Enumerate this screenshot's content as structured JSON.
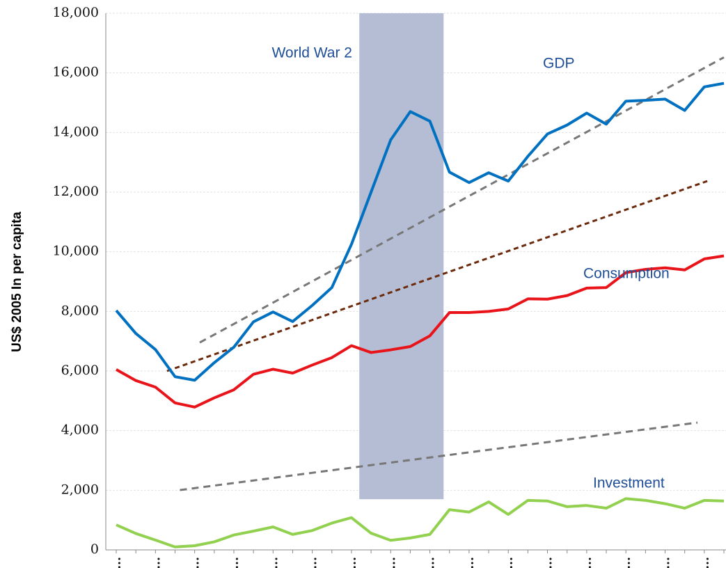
{
  "chart_data": {
    "type": "line",
    "y_label": "US$ 2005 In per capita",
    "categories": [
      "1...",
      null,
      "1...",
      null,
      "1...",
      null,
      "1...",
      null,
      "1...",
      null,
      "1...",
      null,
      "1...",
      null,
      "1...",
      null,
      "1...",
      null,
      "1...",
      null,
      "1...",
      null,
      "1...",
      null,
      "1...",
      null,
      "1...",
      null,
      "1...",
      null,
      "1...",
      null
    ],
    "series": [
      {
        "name": "GDP",
        "color": "#0070c0",
        "values": [
          8030,
          7260,
          6720,
          5810,
          5690,
          6280,
          6800,
          7650,
          7980,
          7660,
          8200,
          8800,
          10250,
          12000,
          13750,
          14700,
          14380,
          12670,
          12320,
          12650,
          12370,
          13200,
          13950,
          14250,
          14650,
          14280,
          15050,
          15080,
          15120,
          14740,
          15530,
          15650
        ]
      },
      {
        "name": "Consumption",
        "color": "#e8141a",
        "values": [
          6050,
          5680,
          5460,
          4930,
          4790,
          5100,
          5370,
          5890,
          6060,
          5930,
          6200,
          6450,
          6850,
          6620,
          6710,
          6820,
          7180,
          7960,
          7960,
          8000,
          8080,
          8420,
          8410,
          8530,
          8780,
          8800,
          9300,
          9410,
          9460,
          9390,
          9760,
          9860
        ]
      },
      {
        "name": "Investment",
        "color": "#92d050",
        "values": [
          840,
          550,
          330,
          100,
          140,
          270,
          500,
          630,
          770,
          520,
          650,
          900,
          1080,
          560,
          320,
          400,
          520,
          1350,
          1270,
          1610,
          1190,
          1660,
          1640,
          1450,
          1490,
          1400,
          1720,
          1660,
          1550,
          1400,
          1660,
          1640
        ]
      }
    ],
    "trend_lines": [
      {
        "color": "#777777",
        "x": [
          4.26,
          31
        ],
        "values": [
          6955,
          16520
        ]
      },
      {
        "color": "#6b2a0c",
        "x": [
          2.59,
          30.15
        ],
        "values": [
          6000,
          12370
        ]
      },
      {
        "color": "#777777",
        "x": [
          3.25,
          29.65
        ],
        "values": [
          2007,
          4270
        ]
      }
    ],
    "shaded_region": {
      "label": "World War 2",
      "color": "#b4bdd3",
      "x": [
        12.4,
        16.7
      ],
      "values": [
        1700,
        18000
      ]
    },
    "series_labels": [
      "GDP",
      "Consumption",
      "Investment"
    ],
    "ylim": [
      0,
      18000
    ],
    "yticks": [
      0,
      {
        "value": 2000,
        "label": "2,000"
      },
      {
        "value": 4000,
        "label": "4,000"
      },
      {
        "value": 6000,
        "label": "6,000"
      },
      {
        "value": 8000,
        "label": "8,000"
      },
      {
        "value": 10000,
        "label": "10,000"
      },
      {
        "value": 12000,
        "label": "12,000"
      },
      {
        "value": 14000,
        "label": "14,000"
      },
      {
        "value": 16000,
        "label": "16,000"
      },
      {
        "value": 18000,
        "label": "18,000"
      }
    ],
    "grid": true
  }
}
